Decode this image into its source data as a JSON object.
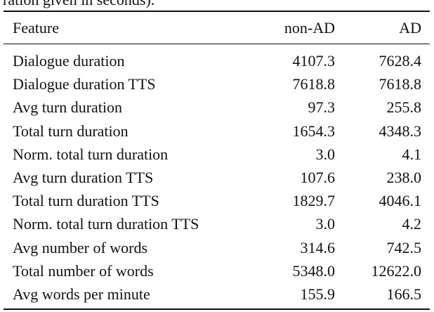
{
  "caption": "ration given in seconds).",
  "table": {
    "header": [
      "Feature",
      "non-AD",
      "AD"
    ],
    "rows": [
      [
        "Dialogue duration",
        "4107.3",
        "7628.4"
      ],
      [
        "Dialogue duration TTS",
        "7618.8",
        "7618.8"
      ],
      [
        "Avg turn duration",
        "97.3",
        "255.8"
      ],
      [
        "Total turn duration",
        "1654.3",
        "4348.3"
      ],
      [
        "Norm. total turn duration",
        "3.0",
        "4.1"
      ],
      [
        "Avg turn duration TTS",
        "107.6",
        "238.0"
      ],
      [
        "Total turn duration TTS",
        "1829.7",
        "4046.1"
      ],
      [
        "Norm. total turn duration TTS",
        "3.0",
        "4.2"
      ],
      [
        "Avg number of words",
        "314.6",
        "742.5"
      ],
      [
        "Total number of words",
        "5348.0",
        "12622.0"
      ],
      [
        "Avg words per minute",
        "155.9",
        "166.5"
      ]
    ]
  }
}
